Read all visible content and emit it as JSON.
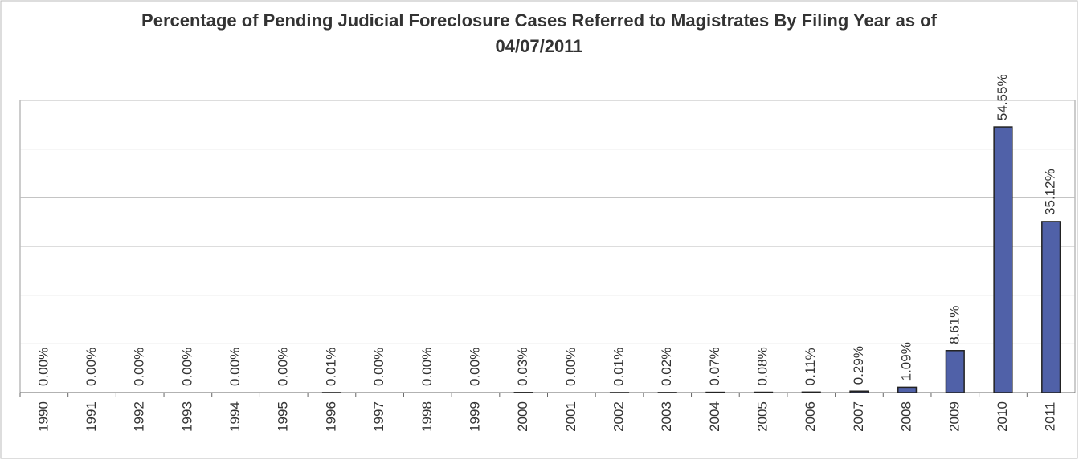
{
  "chart_data": {
    "type": "bar",
    "title": "Percentage of Pending Judicial Foreclosure Cases Referred to Magistrates By Filing Year as of 04/07/2011",
    "categories": [
      "1990",
      "1991",
      "1992",
      "1993",
      "1994",
      "1995",
      "1996",
      "1997",
      "1998",
      "1999",
      "2000",
      "2001",
      "2002",
      "2003",
      "2004",
      "2005",
      "2006",
      "2007",
      "2008",
      "2009",
      "2010",
      "2011"
    ],
    "values": [
      0,
      0,
      0,
      0,
      0,
      0,
      0.01,
      0,
      0,
      0,
      0.03,
      0,
      0.01,
      0.02,
      0.07,
      0.08,
      0.11,
      0.29,
      1.09,
      8.61,
      54.55,
      35.12
    ],
    "value_labels": [
      "0.00%",
      "0.00%",
      "0.00%",
      "0.00%",
      "0.00%",
      "0.00%",
      "0.01%",
      "0.00%",
      "0.00%",
      "0.00%",
      "0.03%",
      "0.00%",
      "0.01%",
      "0.02%",
      "0.07%",
      "0.08%",
      "0.11%",
      "0.29%",
      "1.09%",
      "8.61%",
      "54.55%",
      "35.12%"
    ],
    "color": "#5061a8",
    "ylim": [
      0,
      60
    ],
    "yticks": [
      0,
      10,
      20,
      30,
      40,
      50,
      60
    ],
    "grid": true
  }
}
